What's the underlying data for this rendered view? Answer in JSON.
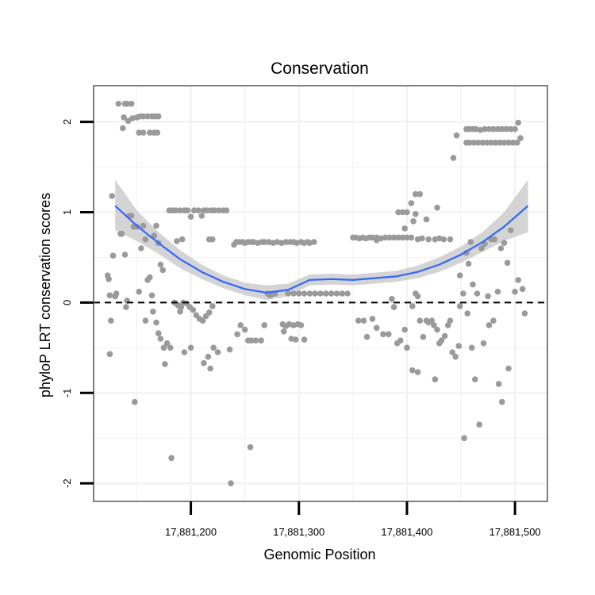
{
  "chart_data": {
    "type": "scatter",
    "title": "Conservation",
    "xlabel": "Genomic Position",
    "ylabel": "phyloP LRT conservation scores",
    "xlim": [
      17881110,
      17881530
    ],
    "ylim": [
      -2.2,
      2.4
    ],
    "x_ticks": [
      17881200,
      17881300,
      17881400,
      17881500
    ],
    "x_tick_labels": [
      "17,881,200",
      "17,881,300",
      "17,881,400",
      "17,881,500"
    ],
    "y_ticks": [
      -2,
      -1,
      0,
      1,
      2
    ],
    "y_tick_labels": [
      "-2",
      "-1",
      "0",
      "1",
      "2"
    ],
    "grid": true,
    "reference_line": {
      "y": 0,
      "style": "dashed"
    },
    "colors": {
      "points": "#9a9a9a",
      "smooth": "#3366ff",
      "ribbon": "#cccccc",
      "panel_border": "#808080",
      "grid": "#f2f2f2"
    },
    "smooth": {
      "x": [
        17881130,
        17881150,
        17881170,
        17881190,
        17881210,
        17881230,
        17881250,
        17881270,
        17881290,
        17881310,
        17881330,
        17881350,
        17881370,
        17881390,
        17881410,
        17881430,
        17881450,
        17881470,
        17881490,
        17881512
      ],
      "y": [
        1.07,
        0.85,
        0.66,
        0.48,
        0.34,
        0.23,
        0.15,
        0.11,
        0.14,
        0.25,
        0.26,
        0.25,
        0.27,
        0.29,
        0.34,
        0.42,
        0.53,
        0.67,
        0.84,
        1.07
      ],
      "lower": [
        0.8,
        0.68,
        0.54,
        0.38,
        0.26,
        0.16,
        0.08,
        0.03,
        0.07,
        0.19,
        0.2,
        0.19,
        0.21,
        0.23,
        0.27,
        0.34,
        0.44,
        0.56,
        0.68,
        0.78
      ],
      "upper": [
        1.36,
        1.02,
        0.78,
        0.58,
        0.42,
        0.3,
        0.22,
        0.19,
        0.21,
        0.31,
        0.32,
        0.31,
        0.33,
        0.35,
        0.41,
        0.5,
        0.62,
        0.78,
        1.0,
        1.36
      ]
    },
    "points": [
      [
        17881133,
        2.2
      ],
      [
        17881139,
        2.2
      ],
      [
        17881141,
        2.2
      ],
      [
        17881145,
        2.2
      ],
      [
        17881137,
        1.93
      ],
      [
        17881138,
        2.05
      ],
      [
        17881142,
        2.01
      ],
      [
        17881146,
        2.04
      ],
      [
        17881150,
        2.05
      ],
      [
        17881153,
        2.06
      ],
      [
        17881156,
        2.06
      ],
      [
        17881160,
        2.06
      ],
      [
        17881164,
        2.06
      ],
      [
        17881167,
        2.06
      ],
      [
        17881170,
        2.06
      ],
      [
        17881152,
        1.88
      ],
      [
        17881156,
        1.88
      ],
      [
        17881162,
        1.88
      ],
      [
        17881166,
        1.88
      ],
      [
        17881169,
        1.88
      ],
      [
        17881123,
        0.3
      ],
      [
        17881124,
        0.26
      ],
      [
        17881125,
        0.08
      ],
      [
        17881127,
        1.18
      ],
      [
        17881128,
        0.52
      ],
      [
        17881130,
        0.07
      ],
      [
        17881131,
        0.1
      ],
      [
        17881135,
        0.76
      ],
      [
        17881136,
        0.76
      ],
      [
        17881139,
        0.53
      ],
      [
        17881141,
        0.02
      ],
      [
        17881143,
        0.96
      ],
      [
        17881145,
        0.96
      ],
      [
        17881147,
        0.84
      ],
      [
        17881150,
        0.84
      ],
      [
        17881152,
        0.12
      ],
      [
        17881154,
        0.6
      ],
      [
        17881156,
        0.85
      ],
      [
        17881158,
        0.7
      ],
      [
        17881160,
        0.25
      ],
      [
        17881162,
        0.28
      ],
      [
        17881164,
        0.08
      ],
      [
        17881166,
        0.74
      ],
      [
        17881168,
        0.85
      ],
      [
        17881170,
        0.66
      ],
      [
        17881172,
        0.42
      ],
      [
        17881174,
        0.36
      ],
      [
        17881126,
        -0.2
      ],
      [
        17881125,
        -0.57
      ],
      [
        17881140,
        -0.05
      ],
      [
        17881148,
        -1.1
      ],
      [
        17881158,
        -0.2
      ],
      [
        17881165,
        -0.1
      ],
      [
        17881168,
        -0.22
      ],
      [
        17881170,
        -0.34
      ],
      [
        17881172,
        -0.4
      ],
      [
        17881175,
        -0.5
      ],
      [
        17881178,
        -0.45
      ],
      [
        17881181,
        -0.5
      ],
      [
        17881176,
        -0.68
      ],
      [
        17881182,
        -1.72
      ],
      [
        17881185,
        0.0
      ],
      [
        17881188,
        -0.03
      ],
      [
        17881191,
        -0.05
      ],
      [
        17881193,
        0.0
      ],
      [
        17881196,
        -0.01
      ],
      [
        17881199,
        -0.05
      ],
      [
        17881202,
        -0.08
      ],
      [
        17881205,
        -0.14
      ],
      [
        17881208,
        -0.18
      ],
      [
        17881211,
        -0.2
      ],
      [
        17881214,
        -0.15
      ],
      [
        17881217,
        -0.11
      ],
      [
        17881220,
        -0.04
      ],
      [
        17881190,
        -0.1
      ],
      [
        17881194,
        -0.55
      ],
      [
        17881200,
        -0.5
      ],
      [
        17881212,
        -0.67
      ],
      [
        17881216,
        -0.6
      ],
      [
        17881221,
        -0.5
      ],
      [
        17881225,
        -0.55
      ],
      [
        17881218,
        -0.73
      ],
      [
        17881180,
        1.02
      ],
      [
        17881183,
        1.02
      ],
      [
        17881186,
        1.02
      ],
      [
        17881190,
        1.02
      ],
      [
        17881194,
        1.02
      ],
      [
        17881197,
        1.02
      ],
      [
        17881203,
        1.02
      ],
      [
        17881207,
        1.02
      ],
      [
        17881212,
        1.02
      ],
      [
        17881215,
        1.02
      ],
      [
        17881219,
        1.02
      ],
      [
        17881222,
        1.02
      ],
      [
        17881226,
        1.02
      ],
      [
        17881230,
        1.02
      ],
      [
        17881233,
        1.02
      ],
      [
        17881210,
        0.96
      ],
      [
        17881217,
        0.7
      ],
      [
        17881220,
        0.7
      ],
      [
        17881200,
        0.95
      ],
      [
        17881187,
        0.68
      ],
      [
        17881192,
        0.7
      ],
      [
        17881240,
        0.64
      ],
      [
        17881242,
        0.67
      ],
      [
        17881245,
        0.67
      ],
      [
        17881248,
        0.67
      ],
      [
        17881250,
        0.66
      ],
      [
        17881253,
        0.67
      ],
      [
        17881256,
        0.67
      ],
      [
        17881258,
        0.67
      ],
      [
        17881262,
        0.66
      ],
      [
        17881266,
        0.67
      ],
      [
        17881268,
        0.67
      ],
      [
        17881272,
        0.67
      ],
      [
        17881276,
        0.66
      ],
      [
        17881280,
        0.67
      ],
      [
        17881284,
        0.66
      ],
      [
        17881288,
        0.67
      ],
      [
        17881292,
        0.67
      ],
      [
        17881295,
        0.67
      ],
      [
        17881298,
        0.66
      ],
      [
        17881302,
        0.67
      ],
      [
        17881305,
        0.66
      ],
      [
        17881308,
        0.67
      ],
      [
        17881310,
        0.66
      ],
      [
        17881314,
        0.67
      ],
      [
        17881271,
        0.1
      ],
      [
        17881273,
        0.08
      ],
      [
        17881275,
        0.09
      ],
      [
        17881278,
        0.1
      ],
      [
        17881290,
        0.1
      ],
      [
        17881295,
        0.1
      ],
      [
        17881300,
        0.1
      ],
      [
        17881305,
        0.1
      ],
      [
        17881310,
        0.1
      ],
      [
        17881315,
        0.1
      ],
      [
        17881320,
        0.1
      ],
      [
        17881325,
        0.1
      ],
      [
        17881330,
        0.1
      ],
      [
        17881335,
        0.1
      ],
      [
        17881340,
        0.1
      ],
      [
        17881345,
        0.1
      ],
      [
        17881243,
        -0.35
      ],
      [
        17881246,
        -0.25
      ],
      [
        17881250,
        -0.3
      ],
      [
        17881253,
        -0.42
      ],
      [
        17881256,
        -0.42
      ],
      [
        17881260,
        -0.42
      ],
      [
        17881265,
        -0.42
      ],
      [
        17881255,
        -1.6
      ],
      [
        17881237,
        -2.0
      ],
      [
        17881236,
        -0.52
      ],
      [
        17881268,
        -0.25
      ],
      [
        17881285,
        -0.24
      ],
      [
        17881288,
        -0.26
      ],
      [
        17881291,
        -0.24
      ],
      [
        17881295,
        -0.25
      ],
      [
        17881299,
        -0.24
      ],
      [
        17881302,
        -0.25
      ],
      [
        17881286,
        -0.32
      ],
      [
        17881293,
        -0.4
      ],
      [
        17881297,
        -0.41
      ],
      [
        17881305,
        -0.41
      ],
      [
        17881350,
        0.72
      ],
      [
        17881353,
        0.72
      ],
      [
        17881356,
        0.71
      ],
      [
        17881359,
        0.72
      ],
      [
        17881362,
        0.71
      ],
      [
        17881365,
        0.72
      ],
      [
        17881368,
        0.72
      ],
      [
        17881372,
        0.72
      ],
      [
        17881376,
        0.71
      ],
      [
        17881380,
        0.72
      ],
      [
        17881384,
        0.72
      ],
      [
        17881388,
        0.72
      ],
      [
        17881392,
        0.72
      ],
      [
        17881396,
        0.72
      ],
      [
        17881400,
        0.72
      ],
      [
        17881404,
        0.72
      ],
      [
        17881410,
        0.7
      ],
      [
        17881414,
        0.71
      ],
      [
        17881420,
        0.7
      ],
      [
        17881426,
        0.7
      ],
      [
        17881430,
        0.71
      ],
      [
        17881434,
        0.7
      ],
      [
        17881440,
        0.7
      ],
      [
        17881392,
        1.0
      ],
      [
        17881396,
        1.0
      ],
      [
        17881400,
        1.0
      ],
      [
        17881404,
        1.1
      ],
      [
        17881408,
        1.2
      ],
      [
        17881412,
        1.2
      ],
      [
        17881408,
        0.98
      ],
      [
        17881406,
        0.9
      ],
      [
        17881418,
        0.92
      ],
      [
        17881428,
        1.05
      ],
      [
        17881398,
        0.82
      ],
      [
        17881372,
        0.69
      ],
      [
        17881355,
        -0.2
      ],
      [
        17881360,
        -0.2
      ],
      [
        17881363,
        -0.38
      ],
      [
        17881368,
        -0.18
      ],
      [
        17881372,
        -0.28
      ],
      [
        17881378,
        -0.35
      ],
      [
        17881383,
        -0.35
      ],
      [
        17881386,
        0.04
      ],
      [
        17881388,
        -0.05
      ],
      [
        17881391,
        -0.45
      ],
      [
        17881394,
        -0.42
      ],
      [
        17881398,
        -0.3
      ],
      [
        17881400,
        -0.5
      ],
      [
        17881405,
        -0.04
      ],
      [
        17881408,
        0.1
      ],
      [
        17881410,
        0.07
      ],
      [
        17881412,
        -0.2
      ],
      [
        17881415,
        -0.38
      ],
      [
        17881418,
        -0.2
      ],
      [
        17881420,
        -0.22
      ],
      [
        17881423,
        -0.2
      ],
      [
        17881425,
        -0.25
      ],
      [
        17881428,
        -0.3
      ],
      [
        17881430,
        -0.45
      ],
      [
        17881432,
        -0.42
      ],
      [
        17881435,
        -0.37
      ],
      [
        17881438,
        -0.25
      ],
      [
        17881440,
        -0.2
      ],
      [
        17881442,
        -0.55
      ],
      [
        17881445,
        -0.6
      ],
      [
        17881448,
        -0.48
      ],
      [
        17881405,
        -0.75
      ],
      [
        17881410,
        -0.77
      ],
      [
        17881426,
        -0.85
      ],
      [
        17881443,
        1.6
      ],
      [
        17881446,
        1.85
      ],
      [
        17881449,
        0.3
      ],
      [
        17881452,
        0.1
      ],
      [
        17881455,
        0.55
      ],
      [
        17881457,
        0.43
      ],
      [
        17881459,
        0.67
      ],
      [
        17881461,
        0.2
      ],
      [
        17881465,
        0.1
      ],
      [
        17881469,
        0.6
      ],
      [
        17881472,
        0.65
      ],
      [
        17881475,
        0.07
      ],
      [
        17881478,
        0.7
      ],
      [
        17881481,
        0.7
      ],
      [
        17881484,
        0.12
      ],
      [
        17881487,
        0.6
      ],
      [
        17881490,
        0.66
      ],
      [
        17881493,
        0.44
      ],
      [
        17881496,
        0.8
      ],
      [
        17881500,
        0.12
      ],
      [
        17881503,
        0.25
      ],
      [
        17881507,
        0.15
      ],
      [
        17881509,
        -0.12
      ],
      [
        17881453,
        -1.5
      ],
      [
        17881460,
        -0.5
      ],
      [
        17881463,
        -0.85
      ],
      [
        17881467,
        -1.35
      ],
      [
        17881471,
        -0.45
      ],
      [
        17881476,
        -0.25
      ],
      [
        17881480,
        -0.2
      ],
      [
        17881485,
        -0.9
      ],
      [
        17881488,
        -1.1
      ],
      [
        17881494,
        -0.73
      ],
      [
        17881449,
        -0.04
      ],
      [
        17881456,
        -0.12
      ],
      [
        17881455,
        1.92
      ],
      [
        17881458,
        1.92
      ],
      [
        17881461,
        1.92
      ],
      [
        17881464,
        1.92
      ],
      [
        17881468,
        1.91
      ],
      [
        17881472,
        1.92
      ],
      [
        17881476,
        1.92
      ],
      [
        17881480,
        1.92
      ],
      [
        17881484,
        1.92
      ],
      [
        17881488,
        1.92
      ],
      [
        17881492,
        1.92
      ],
      [
        17881496,
        1.92
      ],
      [
        17881500,
        1.92
      ],
      [
        17881503,
        1.99
      ],
      [
        17881455,
        1.77
      ],
      [
        17881458,
        1.77
      ],
      [
        17881462,
        1.77
      ],
      [
        17881466,
        1.77
      ],
      [
        17881470,
        1.77
      ],
      [
        17881474,
        1.77
      ],
      [
        17881478,
        1.77
      ],
      [
        17881482,
        1.77
      ],
      [
        17881486,
        1.77
      ],
      [
        17881490,
        1.77
      ],
      [
        17881494,
        1.77
      ],
      [
        17881498,
        1.77
      ],
      [
        17881502,
        1.77
      ],
      [
        17881505,
        1.82
      ]
    ]
  }
}
